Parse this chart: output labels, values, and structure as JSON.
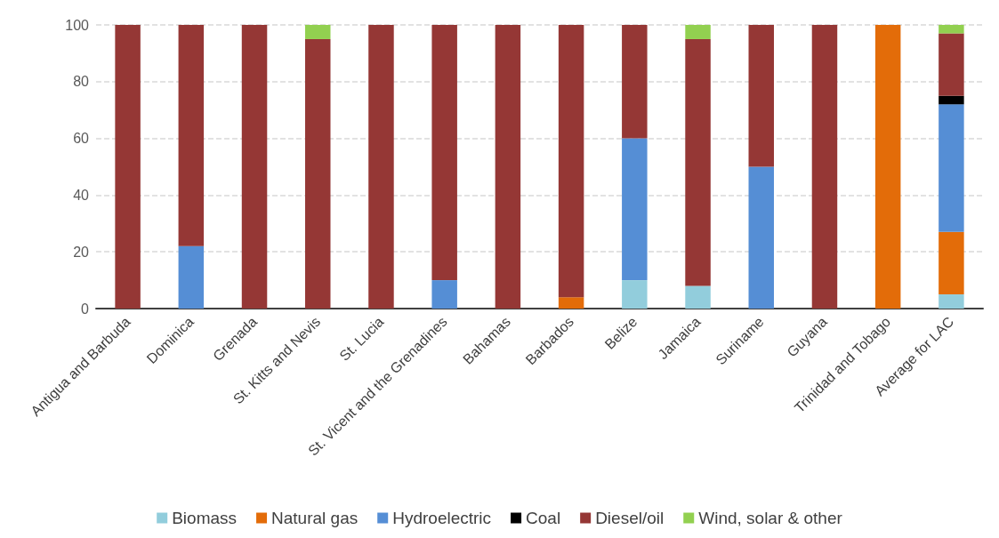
{
  "chart_data": {
    "type": "bar",
    "stacked": true,
    "categories": [
      "Antigua and Barbuda",
      "Dominica",
      "Grenada",
      "St. Kitts and Nevis",
      "St. Lucia",
      "St. Vicent and the Grenadines",
      "Bahamas",
      "Barbados",
      "Belize",
      "Jamaica",
      "Suriname",
      "Guyana",
      "Trinidad and Tobago",
      "Average for LAC"
    ],
    "series": [
      {
        "name": "Biomass",
        "color": "#92cddc",
        "values": [
          0,
          0,
          0,
          0,
          0,
          0,
          0,
          0,
          10,
          8,
          0,
          0,
          0,
          5
        ]
      },
      {
        "name": "Natural gas",
        "color": "#e36c09",
        "values": [
          0,
          0,
          0,
          0,
          0,
          0,
          0,
          4,
          0,
          0,
          0,
          0,
          100,
          22
        ]
      },
      {
        "name": "Hydroelectric",
        "color": "#558ed5",
        "values": [
          0,
          22,
          0,
          0,
          0,
          10,
          0,
          0,
          50,
          0,
          50,
          0,
          0,
          45
        ]
      },
      {
        "name": "Coal",
        "color": "#000000",
        "values": [
          0,
          0,
          0,
          0,
          0,
          0,
          0,
          0,
          0,
          0,
          0,
          0,
          0,
          3
        ]
      },
      {
        "name": "Diesel/oil",
        "color": "#953735",
        "values": [
          100,
          78,
          100,
          95,
          100,
          90,
          100,
          96,
          40,
          87,
          50,
          100,
          0,
          22
        ]
      },
      {
        "name": "Wind, solar & other",
        "color": "#92d050",
        "values": [
          0,
          0,
          0,
          5,
          0,
          0,
          0,
          0,
          0,
          5,
          0,
          0,
          0,
          3
        ]
      }
    ],
    "ylim": [
      0,
      100
    ],
    "yticks": [
      0,
      20,
      40,
      60,
      80,
      100
    ],
    "grid": "y",
    "legend": "bottom"
  }
}
